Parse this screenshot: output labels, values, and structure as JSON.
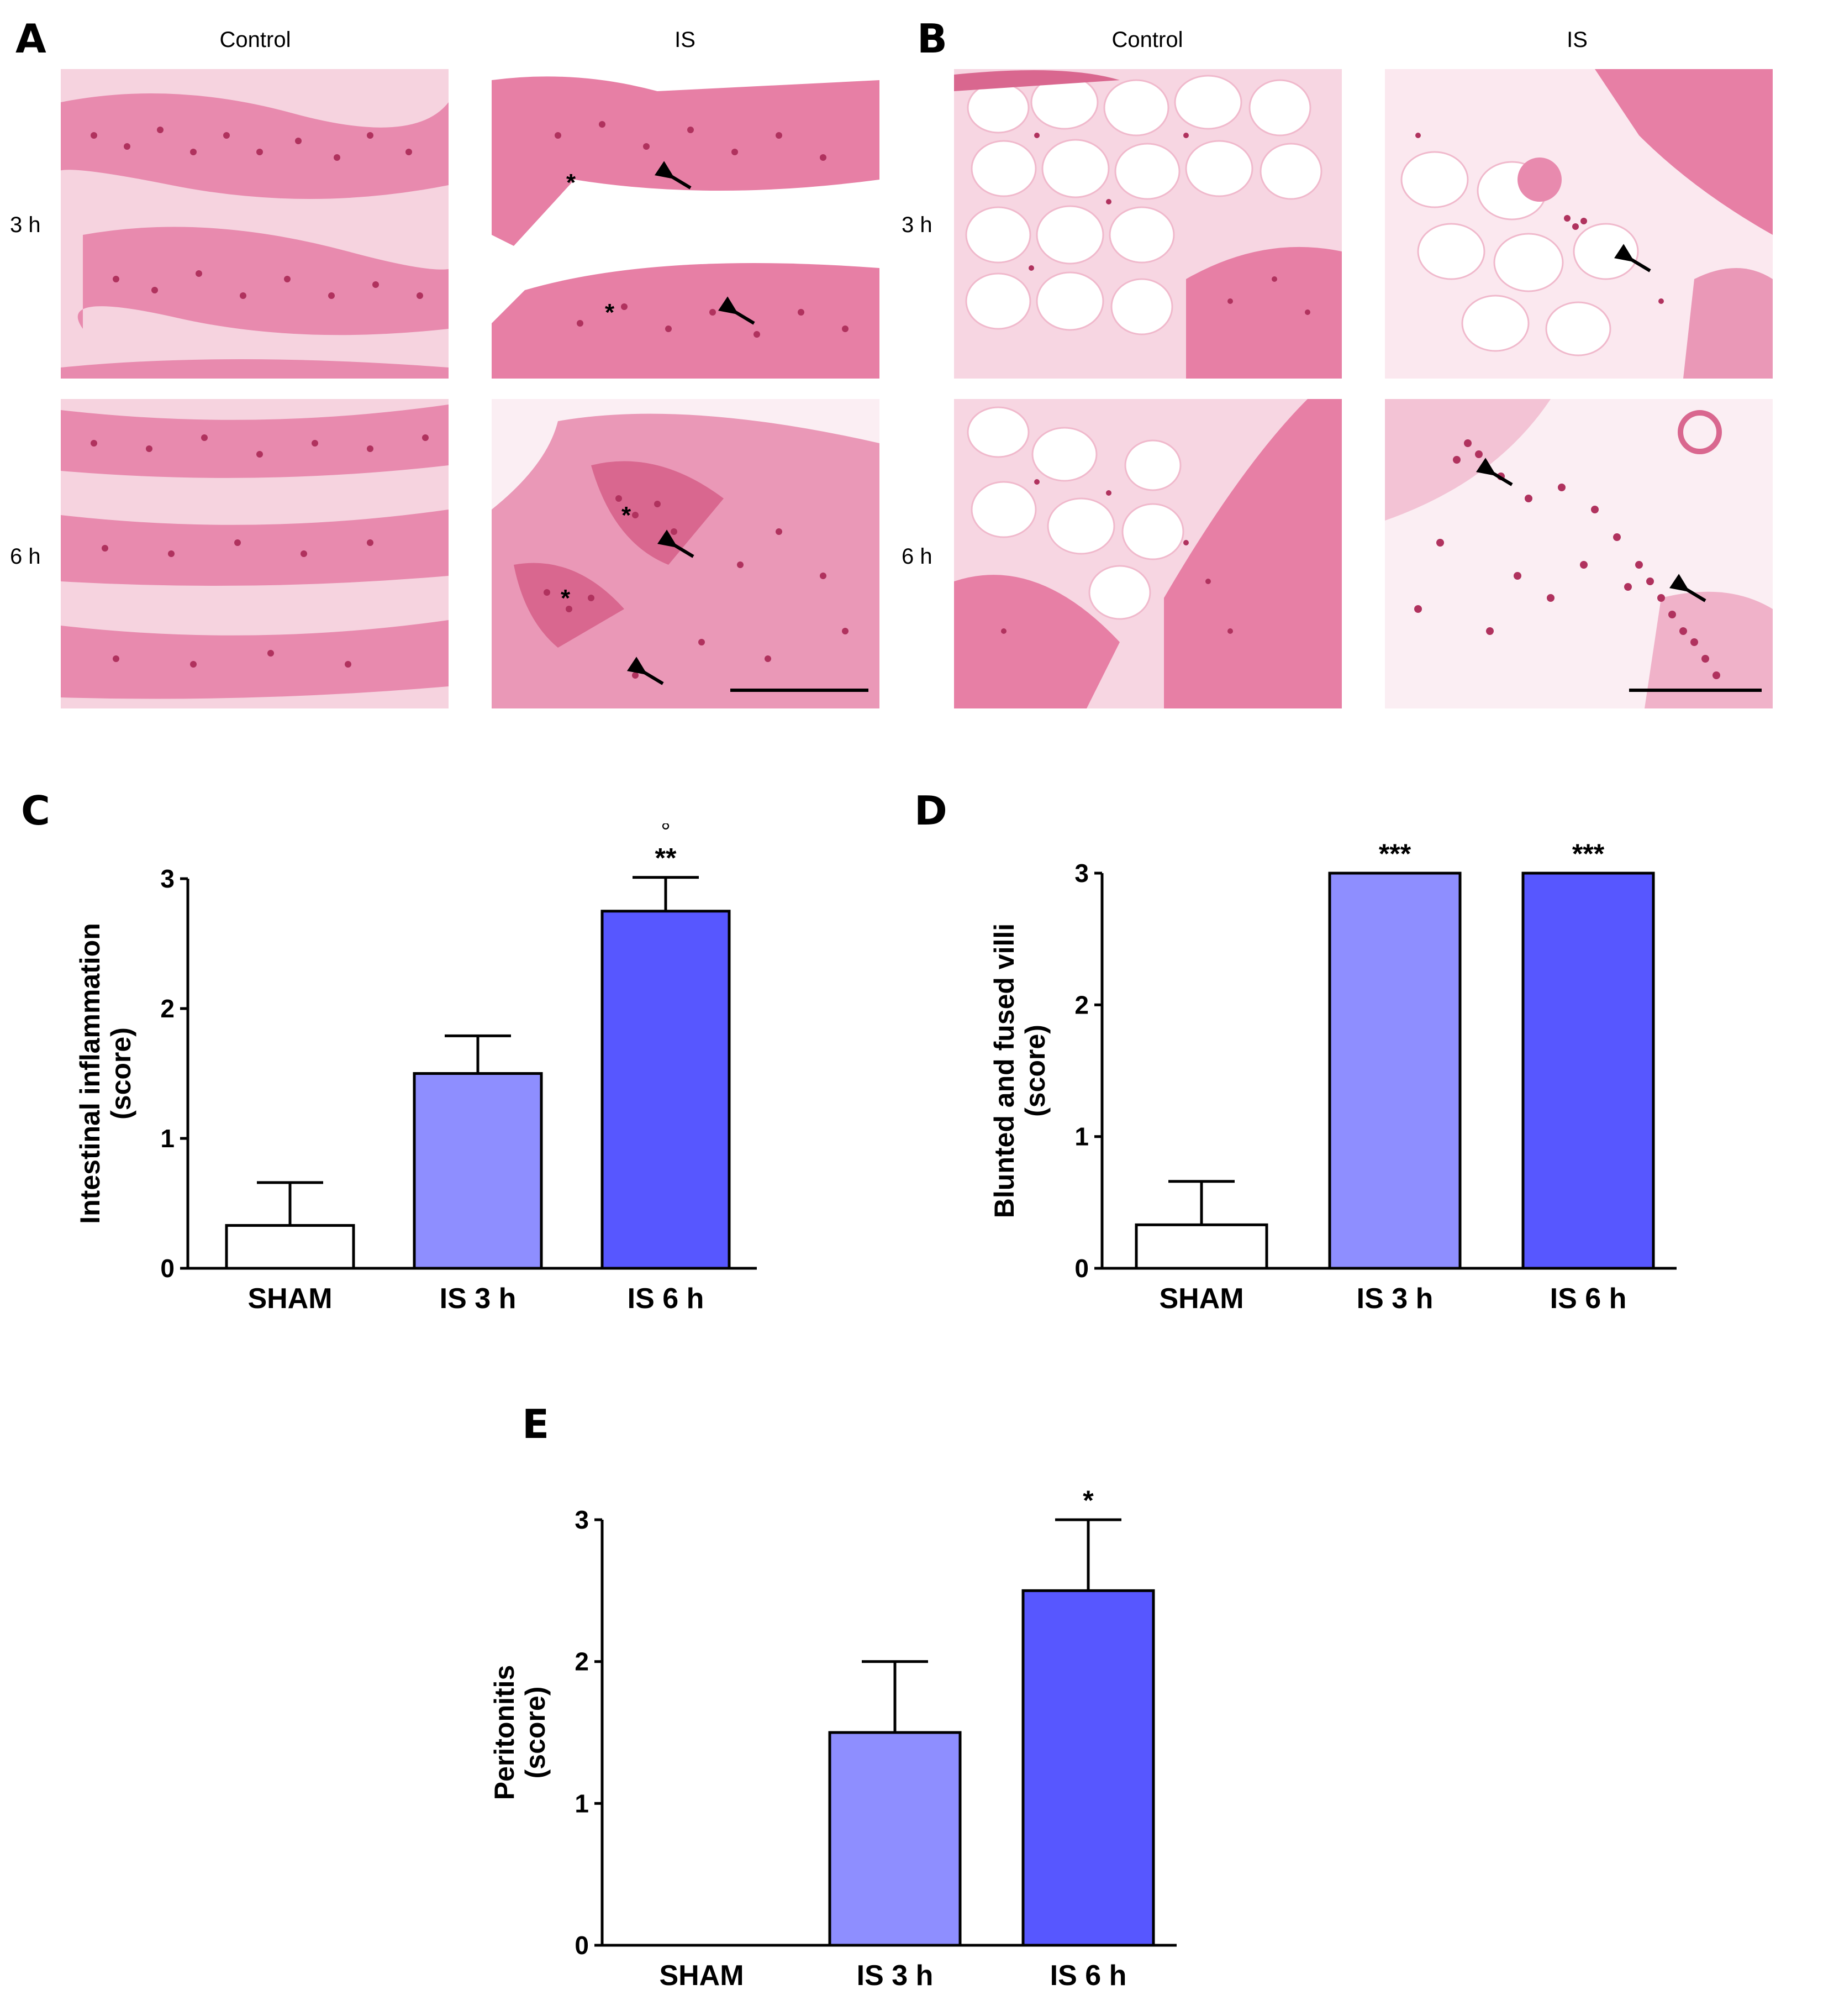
{
  "micrographs": {
    "panel_a": {
      "letter": "A",
      "columns": [
        "Control",
        "IS"
      ],
      "rows": [
        "3 h",
        "6 h"
      ]
    },
    "panel_b": {
      "letter": "B",
      "columns": [
        "Control",
        "IS"
      ],
      "rows": [
        "3 h",
        "6 h"
      ]
    },
    "stain_colors": {
      "background": "#f4c2d4",
      "tissue": "#e77fa5",
      "nuclei": "#b0325e",
      "fat": "#ffffff"
    }
  },
  "colors": {
    "sham": "#ffffff",
    "is_3h": "#8e8eff",
    "is_6h": "#5757ff",
    "outline": "#000000"
  },
  "chart_data": [
    {
      "panel": "C",
      "type": "bar",
      "categories": [
        "SHAM",
        "IS 3 h",
        "IS 6 h"
      ],
      "values": [
        0.33,
        1.5,
        2.75
      ],
      "errors": [
        0.33,
        0.29,
        0.26
      ],
      "annotations": [
        "",
        "",
        "**"
      ],
      "extra_marks": [
        "",
        "",
        "°"
      ],
      "ylabel": [
        "Intestinal inflammation",
        "(score)"
      ],
      "ylim": [
        0,
        3
      ],
      "yticks": [
        "0",
        "1",
        "2",
        "3"
      ]
    },
    {
      "panel": "D",
      "type": "bar",
      "categories": [
        "SHAM",
        "IS 3 h",
        "IS 6 h"
      ],
      "values": [
        0.33,
        3,
        3
      ],
      "errors": [
        0.33,
        0,
        0
      ],
      "annotations": [
        "",
        "***",
        "***"
      ],
      "extra_marks": [
        "",
        "",
        ""
      ],
      "ylabel": [
        "Blunted and fused villi",
        "(score)"
      ],
      "ylim": [
        0,
        3
      ],
      "yticks": [
        "0",
        "1",
        "2",
        "3"
      ]
    },
    {
      "panel": "E",
      "type": "bar",
      "categories": [
        "SHAM",
        "IS 3 h",
        "IS 6 h"
      ],
      "values": [
        0,
        1.5,
        2.5
      ],
      "errors": [
        0,
        0.5,
        0.5
      ],
      "annotations": [
        "",
        "",
        "*"
      ],
      "extra_marks": [
        "",
        "",
        ""
      ],
      "ylabel": [
        "Peritonitis",
        "(score)"
      ],
      "ylim": [
        0,
        3
      ],
      "yticks": [
        "0",
        "1",
        "2",
        "3"
      ]
    }
  ]
}
